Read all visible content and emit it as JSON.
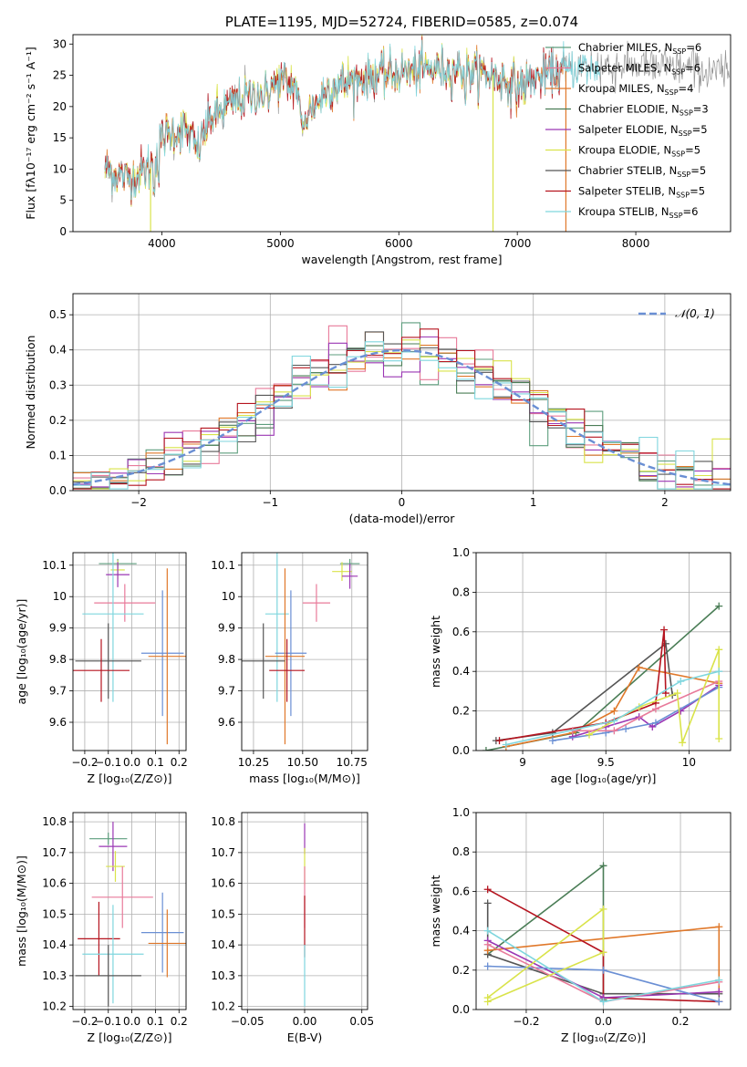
{
  "chart_data": [
    {
      "id": "spectrum",
      "type": "line",
      "title": "PLATE=1195, MJD=52724, FIBERID=0585, z=0.074",
      "xlabel": "wavelength [Angstrom, rest frame]",
      "ylabel": "Flux [fλ10⁻¹⁷ erg cm⁻² s⁻¹ A⁻¹]",
      "xlim": [
        3250,
        8800
      ],
      "ylim": [
        0,
        31.5
      ],
      "xticks": [
        4000,
        5000,
        6000,
        7000,
        8000
      ],
      "yticks": [
        0,
        5,
        10,
        15,
        20,
        25,
        30
      ],
      "grid": false,
      "legend_position": "upper-right",
      "legend": [
        {
          "label": "Chabrier MILES, N",
          "sub": "SSP",
          "tail": "=6",
          "color": "#5d9e7d"
        },
        {
          "label": "Salpeter MILES, N",
          "sub": "SSP",
          "tail": "=6",
          "color": "#e87a9a"
        },
        {
          "label": "Kroupa MILES, N",
          "sub": "SSP",
          "tail": "=4",
          "color": "#e0782a"
        },
        {
          "label": "Chabrier ELODIE, N",
          "sub": "SSP",
          "tail": "=3",
          "color": "#4a7d56"
        },
        {
          "label": "Salpeter ELODIE, N",
          "sub": "SSP",
          "tail": "=5",
          "color": "#9b37b4"
        },
        {
          "label": "Kroupa ELODIE, N",
          "sub": "SSP",
          "tail": "=5",
          "color": "#d9e34a"
        },
        {
          "label": "Chabrier STELIB, N",
          "sub": "SSP",
          "tail": "=5",
          "color": "#555555"
        },
        {
          "label": "Salpeter STELIB, N",
          "sub": "SSP",
          "tail": "=5",
          "color": "#b5141f"
        },
        {
          "label": "Kroupa STELIB, N",
          "sub": "SSP",
          "tail": "=6",
          "color": "#7fd6de"
        }
      ],
      "model_coverage": [
        {
          "x0": 3520,
          "x1": 8790,
          "color": "#888888"
        },
        {
          "x0": 3520,
          "x1": 7400,
          "color": "#e0782a"
        },
        {
          "x0": 3520,
          "x1": 7100,
          "color": "#d9e34a"
        },
        {
          "x0": 3520,
          "x1": 7400,
          "color": "#b5141f"
        },
        {
          "x0": 3520,
          "x1": 7700,
          "color": "#7fd6de"
        }
      ],
      "continuum_knots": {
        "x": [
          3520,
          3700,
          3900,
          4000,
          4200,
          4300,
          4400,
          4600,
          4800,
          5000,
          5150,
          5200,
          5400,
          5600,
          5800,
          6000,
          6200,
          6500,
          6800,
          7000,
          7200,
          7500,
          8000,
          8500,
          8790
        ],
        "y": [
          10,
          8.5,
          10,
          15,
          16.5,
          13,
          18,
          20.5,
          22,
          24,
          23,
          18,
          23,
          24,
          25,
          25.5,
          26,
          26,
          25,
          23,
          25,
          26,
          26.5,
          26,
          25
        ]
      }
    },
    {
      "id": "residuals",
      "type": "histogram",
      "xlabel": "(data-model)/error",
      "ylabel": "Normed distribution",
      "xlim": [
        -2.5,
        2.5
      ],
      "ylim": [
        0,
        0.56
      ],
      "xticks": [
        -2,
        -1,
        0,
        1,
        2
      ],
      "yticks": [
        0.0,
        0.1,
        0.2,
        0.3,
        0.4,
        0.5
      ],
      "grid": true,
      "legend_position": "upper-right",
      "legend": [
        {
          "label": "𝒩(0, 1)",
          "color": "#6a8fd4",
          "dashed": true
        }
      ],
      "gaussian": {
        "mu": 0,
        "sigma": 1
      },
      "bins": 36,
      "series": [
        {
          "color": "#5d9e7d",
          "shift": 0.0
        },
        {
          "color": "#e87a9a",
          "shift": 0.01
        },
        {
          "color": "#e0782a",
          "shift": -0.01
        },
        {
          "color": "#4a7d56",
          "shift": 0.02
        },
        {
          "color": "#9b37b4",
          "shift": -0.02
        },
        {
          "color": "#d9e34a",
          "shift": 0.015
        },
        {
          "color": "#555555",
          "shift": -0.015
        },
        {
          "color": "#b5141f",
          "shift": 0.005
        },
        {
          "color": "#7fd6de",
          "shift": -0.005
        }
      ]
    },
    {
      "id": "age-vs-z",
      "type": "errorbar",
      "xlabel": "Z [log₁₀(Z/Z⊙)]",
      "ylabel": "age  [log₁₀(age/yr)]",
      "xlim": [
        -0.25,
        0.23
      ],
      "ylim": [
        9.51,
        10.14
      ],
      "xticks": [
        -0.2,
        -0.1,
        0.0,
        0.1,
        0.2
      ],
      "xticklabels": [
        "−0.2",
        "−0.1",
        "0.0",
        "0.1",
        "0.2"
      ],
      "yticks": [
        9.6,
        9.7,
        9.8,
        9.9,
        10.0,
        10.1
      ],
      "grid": true,
      "points": [
        {
          "x": -0.06,
          "xerr": 0.08,
          "y": 10.105,
          "yerr": 0.015,
          "color": "#5d9e7d"
        },
        {
          "x": -0.06,
          "xerr": 0.03,
          "y": 10.085,
          "yerr": 0.03,
          "color": "#d9e34a"
        },
        {
          "x": -0.06,
          "xerr": 0.05,
          "y": 10.07,
          "yerr": 0.04,
          "color": "#9b37b4"
        },
        {
          "x": -0.03,
          "xerr": 0.13,
          "y": 9.98,
          "yerr": 0.06,
          "color": "#e87a9a"
        },
        {
          "x": -0.08,
          "xerr": 0.13,
          "y": 9.945,
          "yerr": 0.28,
          "color": "#7fd6de"
        },
        {
          "x": 0.13,
          "xerr": 0.09,
          "y": 9.82,
          "yerr": 0.2,
          "color": "#6a8fd4"
        },
        {
          "x": 0.15,
          "xerr": 0.08,
          "y": 9.81,
          "yerr": 0.28,
          "color": "#e0782a"
        },
        {
          "x": -0.1,
          "xerr": 0.14,
          "y": 9.795,
          "yerr": 0.12,
          "color": "#555555"
        },
        {
          "x": -0.13,
          "xerr": 0.12,
          "y": 9.765,
          "yerr": 0.1,
          "color": "#b5141f"
        }
      ]
    },
    {
      "id": "age-vs-mass",
      "type": "errorbar",
      "xlabel": "mass [log₁₀(M/M⊙)]",
      "ylabel": "",
      "xlim": [
        10.19,
        10.83
      ],
      "ylim": [
        9.51,
        10.14
      ],
      "xticks": [
        10.25,
        10.5,
        10.75
      ],
      "xticklabels": [
        "10.25",
        "10.50",
        "10.75"
      ],
      "yticks": [
        9.6,
        9.7,
        9.8,
        9.9,
        10.0,
        10.1
      ],
      "grid": true,
      "points": [
        {
          "x": 10.74,
          "xerr": 0.05,
          "y": 10.105,
          "yerr": 0.015,
          "color": "#5d9e7d"
        },
        {
          "x": 10.7,
          "xerr": 0.05,
          "y": 10.08,
          "yerr": 0.03,
          "color": "#d9e34a"
        },
        {
          "x": 10.74,
          "xerr": 0.04,
          "y": 10.065,
          "yerr": 0.04,
          "color": "#9b37b4"
        },
        {
          "x": 10.57,
          "xerr": 0.07,
          "y": 9.98,
          "yerr": 0.06,
          "color": "#e87a9a"
        },
        {
          "x": 10.37,
          "xerr": 0.06,
          "y": 9.945,
          "yerr": 0.28,
          "color": "#7fd6de"
        },
        {
          "x": 10.44,
          "xerr": 0.08,
          "y": 9.82,
          "yerr": 0.2,
          "color": "#6a8fd4"
        },
        {
          "x": 10.41,
          "xerr": 0.1,
          "y": 9.81,
          "yerr": 0.28,
          "color": "#e0782a"
        },
        {
          "x": 10.3,
          "xerr": 0.11,
          "y": 9.795,
          "yerr": 0.12,
          "color": "#555555"
        },
        {
          "x": 10.42,
          "xerr": 0.09,
          "y": 9.765,
          "yerr": 0.1,
          "color": "#b5141f"
        }
      ]
    },
    {
      "id": "weight-vs-age",
      "type": "line",
      "xlabel": "age  [log₁₀(age/yr)]",
      "ylabel": "mass weight",
      "xlim": [
        8.72,
        10.25
      ],
      "ylim": [
        0,
        1.0
      ],
      "xticks": [
        9.0,
        9.5,
        10.0
      ],
      "yticks": [
        0.0,
        0.2,
        0.4,
        0.6,
        0.8,
        1.0
      ],
      "grid": true,
      "series": [
        {
          "color": "#4a7d56",
          "x": [
            8.78,
            9.32,
            10.18
          ],
          "y": [
            0.0,
            0.09,
            0.73
          ]
        },
        {
          "color": "#555555",
          "x": [
            8.84,
            9.18,
            9.86,
            9.9
          ],
          "y": [
            0.05,
            0.09,
            0.54,
            0.28
          ]
        },
        {
          "color": "#e0782a",
          "x": [
            8.9,
            9.3,
            9.55,
            9.7,
            10.18
          ],
          "y": [
            0.02,
            0.09,
            0.2,
            0.42,
            0.34
          ]
        },
        {
          "color": "#b5141f",
          "x": [
            8.86,
            9.5,
            9.8,
            9.85,
            9.86
          ],
          "y": [
            0.05,
            0.14,
            0.24,
            0.61,
            0.29
          ]
        },
        {
          "color": "#9b37b4",
          "x": [
            9.3,
            9.5,
            9.7,
            9.78,
            9.95,
            10.18
          ],
          "y": [
            0.07,
            0.12,
            0.17,
            0.12,
            0.2,
            0.33
          ]
        },
        {
          "color": "#6a8fd4",
          "x": [
            9.18,
            9.5,
            9.62,
            9.8,
            10.18
          ],
          "y": [
            0.05,
            0.09,
            0.11,
            0.14,
            0.32
          ]
        },
        {
          "color": "#e87a9a",
          "x": [
            9.3,
            9.55,
            9.8,
            10.18
          ],
          "y": [
            0.1,
            0.1,
            0.21,
            0.35
          ]
        },
        {
          "color": "#d9e34a",
          "x": [
            9.4,
            9.7,
            9.93,
            9.96,
            10.18,
            10.18
          ],
          "y": [
            0.08,
            0.22,
            0.29,
            0.04,
            0.51,
            0.06
          ]
        },
        {
          "color": "#7fd6de",
          "x": [
            8.9,
            9.55,
            9.95,
            10.18
          ],
          "y": [
            0.03,
            0.15,
            0.35,
            0.4
          ]
        }
      ]
    },
    {
      "id": "mass-vs-z",
      "type": "errorbar",
      "xlabel": "Z [log₁₀(Z/Z⊙)]",
      "ylabel": "mass [log₁₀(M/M⊙)]",
      "xlim": [
        -0.25,
        0.23
      ],
      "ylim": [
        10.19,
        10.83
      ],
      "xticks": [
        -0.2,
        -0.1,
        0.0,
        0.1,
        0.2
      ],
      "xticklabels": [
        "−0.2",
        "−0.1",
        "0.0",
        "0.1",
        "0.2"
      ],
      "yticks": [
        10.2,
        10.3,
        10.4,
        10.5,
        10.6,
        10.7,
        10.8
      ],
      "grid": true,
      "points": [
        {
          "x": -0.1,
          "xerr": 0.08,
          "y": 10.745,
          "yerr": 0.02,
          "color": "#5d9e7d"
        },
        {
          "x": -0.08,
          "xerr": 0.06,
          "y": 10.72,
          "yerr": 0.08,
          "color": "#9b37b4"
        },
        {
          "x": -0.07,
          "xerr": 0.04,
          "y": 10.655,
          "yerr": 0.05,
          "color": "#d9e34a"
        },
        {
          "x": -0.04,
          "xerr": 0.13,
          "y": 10.555,
          "yerr": 0.1,
          "color": "#e87a9a"
        },
        {
          "x": -0.14,
          "xerr": 0.09,
          "y": 10.42,
          "yerr": 0.12,
          "color": "#b5141f"
        },
        {
          "x": 0.13,
          "xerr": 0.09,
          "y": 10.44,
          "yerr": 0.13,
          "color": "#6a8fd4"
        },
        {
          "x": 0.15,
          "xerr": 0.08,
          "y": 10.405,
          "yerr": 0.11,
          "color": "#e0782a"
        },
        {
          "x": -0.08,
          "xerr": 0.13,
          "y": 10.37,
          "yerr": 0.16,
          "color": "#7fd6de"
        },
        {
          "x": -0.1,
          "xerr": 0.14,
          "y": 10.3,
          "yerr": 0.1,
          "color": "#555555"
        }
      ]
    },
    {
      "id": "mass-vs-ebv",
      "type": "errorbar",
      "xlabel": "E(B-V)",
      "ylabel": "",
      "xlim": [
        -0.055,
        0.055
      ],
      "ylim": [
        10.19,
        10.83
      ],
      "xticks": [
        -0.05,
        0.0,
        0.05
      ],
      "xticklabels": [
        "−0.05",
        "0.00",
        "0.05"
      ],
      "yticks": [
        10.2,
        10.3,
        10.4,
        10.5,
        10.6,
        10.7,
        10.8
      ],
      "grid": true,
      "points": [
        {
          "x": 0.0,
          "xerr": 0,
          "y": 10.745,
          "yerr": 0.05,
          "color": "#9b37b4"
        },
        {
          "x": 0.0,
          "xerr": 0,
          "y": 10.655,
          "yerr": 0.06,
          "color": "#d9e34a"
        },
        {
          "x": 0.0,
          "xerr": 0,
          "y": 10.555,
          "yerr": 0.1,
          "color": "#e87a9a"
        },
        {
          "x": 0.0,
          "xerr": 0,
          "y": 10.46,
          "yerr": 0.1,
          "color": "#b5141f"
        },
        {
          "x": 0.0,
          "xerr": 0,
          "y": 10.3,
          "yerr": 0.1,
          "color": "#7fd6de"
        }
      ]
    },
    {
      "id": "weight-vs-z",
      "type": "line",
      "xlabel": "Z [log₁₀(Z/Z⊙)]",
      "ylabel": "mass weight",
      "xlim": [
        -0.33,
        0.33
      ],
      "ylim": [
        0,
        1.0
      ],
      "xticks": [
        -0.2,
        0.0,
        0.2
      ],
      "xticklabels": [
        "−0.2",
        "0.0",
        "0.2"
      ],
      "yticks": [
        0.0,
        0.2,
        0.4,
        0.6,
        0.8,
        1.0
      ],
      "grid": true,
      "series": [
        {
          "color": "#4a7d56",
          "x": [
            -0.3,
            0.0,
            0.0
          ],
          "y": [
            0.28,
            0.73,
            0.05
          ]
        },
        {
          "color": "#555555",
          "x": [
            -0.3,
            -0.3,
            0.0,
            0.3
          ],
          "y": [
            0.54,
            0.28,
            0.08,
            0.08
          ]
        },
        {
          "color": "#e0782a",
          "x": [
            -0.3,
            0.3,
            0.3
          ],
          "y": [
            0.3,
            0.42,
            0.09
          ]
        },
        {
          "color": "#b5141f",
          "x": [
            -0.3,
            0.0,
            0.0,
            0.3
          ],
          "y": [
            0.61,
            0.29,
            0.06,
            0.04
          ]
        },
        {
          "color": "#9b37b4",
          "x": [
            -0.3,
            0.0,
            0.3
          ],
          "y": [
            0.35,
            0.06,
            0.09
          ]
        },
        {
          "color": "#6a8fd4",
          "x": [
            -0.3,
            0.0,
            0.3
          ],
          "y": [
            0.22,
            0.2,
            0.04
          ]
        },
        {
          "color": "#e87a9a",
          "x": [
            -0.3,
            0.0,
            0.3
          ],
          "y": [
            0.33,
            0.04,
            0.14
          ]
        },
        {
          "color": "#d9e34a",
          "x": [
            -0.3,
            0.0,
            0.0,
            -0.3
          ],
          "y": [
            0.04,
            0.29,
            0.51,
            0.06
          ]
        },
        {
          "color": "#7fd6de",
          "x": [
            -0.3,
            0.0,
            0.3
          ],
          "y": [
            0.4,
            0.04,
            0.15
          ]
        }
      ]
    }
  ]
}
